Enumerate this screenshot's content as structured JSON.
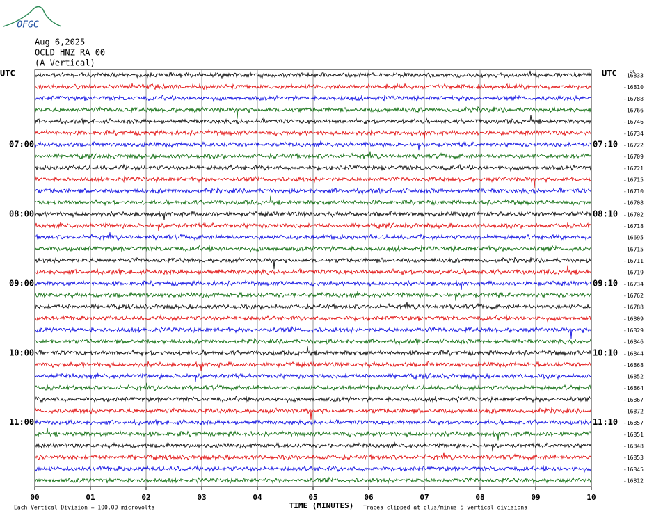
{
  "logo": "OFGC",
  "chart_data": {
    "type": "helicorder",
    "title_lines": [
      "Aug 6,2025",
      "OCLD HNZ RA 00",
      "(A Vertical)"
    ],
    "left_axis_title": "UTC",
    "right_axis_title": "UTC",
    "dc_label": "DC",
    "x_label": "TIME (MINUTES)",
    "footnote_left": "Each Vertical Division =  100.00 microvolts",
    "footnote_right": "Traces clipped at plus/minus 5 vertical divisions",
    "xlim": [
      0,
      10
    ],
    "xticks": [
      {
        "value": 0,
        "label": "00"
      },
      {
        "value": 1,
        "label": "01"
      },
      {
        "value": 2,
        "label": "02"
      },
      {
        "value": 3,
        "label": "03"
      },
      {
        "value": 4,
        "label": "04"
      },
      {
        "value": 5,
        "label": "05"
      },
      {
        "value": 6,
        "label": "06"
      },
      {
        "value": 7,
        "label": "07"
      },
      {
        "value": 8,
        "label": "08"
      },
      {
        "value": 9,
        "label": "09"
      },
      {
        "value": 10,
        "label": "10"
      }
    ],
    "trace_colors": [
      "#000000",
      "#e00000",
      "#0000e0",
      "#006400"
    ],
    "left_labels": [
      null,
      null,
      null,
      null,
      null,
      null,
      "07:00",
      null,
      null,
      null,
      null,
      null,
      "08:00",
      null,
      null,
      null,
      null,
      null,
      "09:00",
      null,
      null,
      null,
      null,
      null,
      "10:00",
      null,
      null,
      null,
      null,
      null,
      "11:00",
      null,
      null,
      null,
      null,
      null
    ],
    "right_time_labels": [
      null,
      null,
      null,
      null,
      null,
      null,
      "07:10",
      null,
      null,
      null,
      null,
      null,
      "08:10",
      null,
      null,
      null,
      null,
      null,
      "09:10",
      null,
      null,
      null,
      null,
      null,
      "10:10",
      null,
      null,
      null,
      null,
      null,
      "11:10",
      null,
      null,
      null,
      null,
      null
    ],
    "dc_values": [
      -16833,
      -16810,
      -16788,
      -16766,
      -16746,
      -16734,
      -16722,
      -16709,
      -16721,
      -16715,
      -16710,
      -16708,
      -16702,
      -16718,
      -16695,
      -16715,
      -16711,
      -16719,
      -16734,
      -16762,
      -16788,
      -16809,
      -16829,
      -16846,
      -16844,
      -16868,
      -16852,
      -16864,
      -16867,
      -16872,
      -16857,
      -16851,
      -16848,
      -16853,
      -16845,
      -16812
    ]
  }
}
